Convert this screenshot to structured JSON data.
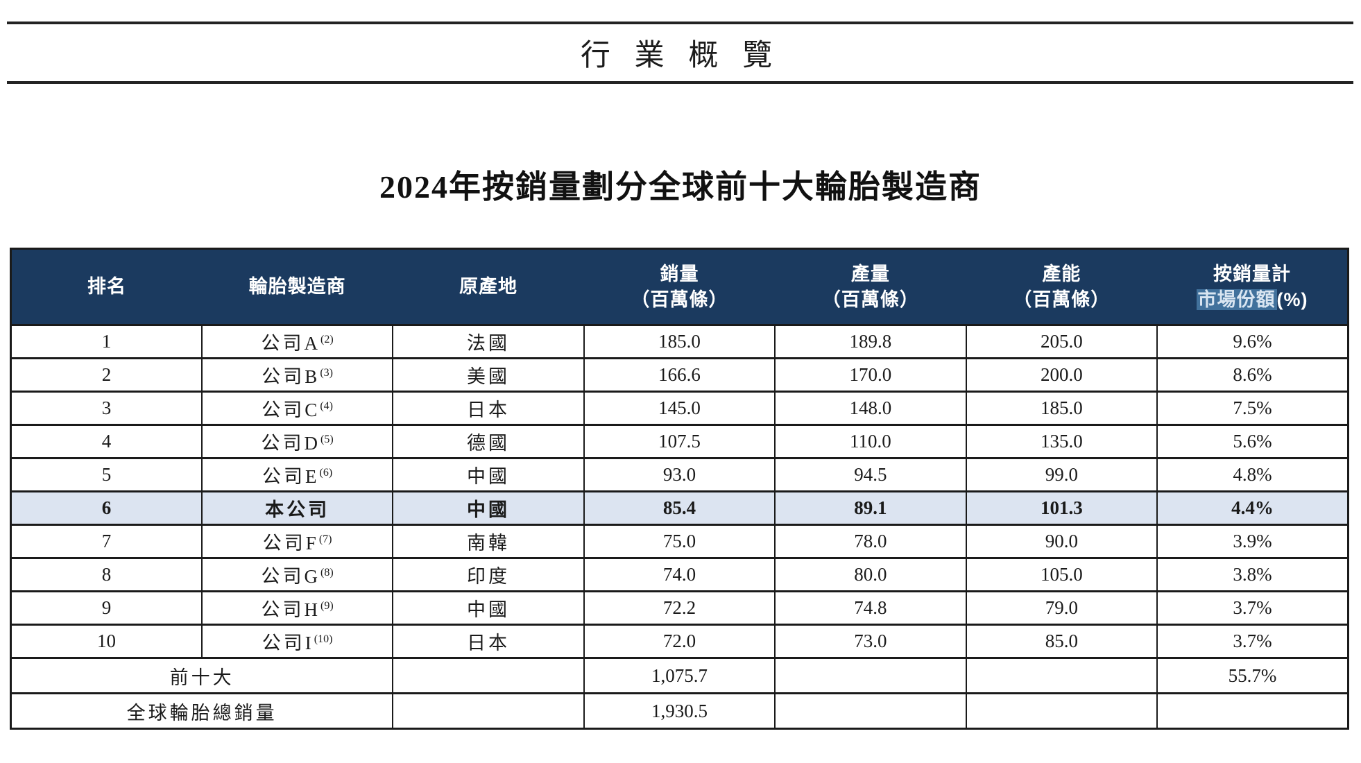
{
  "header": {
    "title": "行 業 概 覽"
  },
  "table": {
    "title": "2024年按銷量劃分全球前十大輪胎製造商",
    "columns": [
      {
        "id": "rank",
        "line1": "排名"
      },
      {
        "id": "manufacturer",
        "line1": "輪胎製造商"
      },
      {
        "id": "origin",
        "line1": "原產地"
      },
      {
        "id": "sales",
        "line1": "銷量",
        "line2": "（百萬條）"
      },
      {
        "id": "production",
        "line1": "產量",
        "line2": "（百萬條）"
      },
      {
        "id": "capacity",
        "line1": "產能",
        "line2": "（百萬條）"
      },
      {
        "id": "market-share",
        "line1": "按銷量計",
        "line2_highlight": "市場份額",
        "line2_suffix": "(%)"
      }
    ],
    "rows": [
      {
        "rank": "1",
        "company": "公司A",
        "note": "(2)",
        "origin": "法國",
        "sales": "185.0",
        "production": "189.8",
        "capacity": "205.0",
        "share": "9.6%",
        "highlight": false
      },
      {
        "rank": "2",
        "company": "公司B",
        "note": "(3)",
        "origin": "美國",
        "sales": "166.6",
        "production": "170.0",
        "capacity": "200.0",
        "share": "8.6%",
        "highlight": false
      },
      {
        "rank": "3",
        "company": "公司C",
        "note": "(4)",
        "origin": "日本",
        "sales": "145.0",
        "production": "148.0",
        "capacity": "185.0",
        "share": "7.5%",
        "highlight": false
      },
      {
        "rank": "4",
        "company": "公司D",
        "note": "(5)",
        "origin": "德國",
        "sales": "107.5",
        "production": "110.0",
        "capacity": "135.0",
        "share": "5.6%",
        "highlight": false
      },
      {
        "rank": "5",
        "company": "公司E",
        "note": "(6)",
        "origin": "中國",
        "sales": "93.0",
        "production": "94.5",
        "capacity": "99.0",
        "share": "4.8%",
        "highlight": false
      },
      {
        "rank": "6",
        "company": "本公司",
        "note": "",
        "origin": "中國",
        "sales": "85.4",
        "production": "89.1",
        "capacity": "101.3",
        "share": "4.4%",
        "highlight": true
      },
      {
        "rank": "7",
        "company": "公司F",
        "note": "(7)",
        "origin": "南韓",
        "sales": "75.0",
        "production": "78.0",
        "capacity": "90.0",
        "share": "3.9%",
        "highlight": false
      },
      {
        "rank": "8",
        "company": "公司G",
        "note": "(8)",
        "origin": "印度",
        "sales": "74.0",
        "production": "80.0",
        "capacity": "105.0",
        "share": "3.8%",
        "highlight": false
      },
      {
        "rank": "9",
        "company": "公司H",
        "note": "(9)",
        "origin": "中國",
        "sales": "72.2",
        "production": "74.8",
        "capacity": "79.0",
        "share": "3.7%",
        "highlight": false
      },
      {
        "rank": "10",
        "company": "公司I",
        "note": "(10)",
        "origin": "日本",
        "sales": "72.0",
        "production": "73.0",
        "capacity": "85.0",
        "share": "3.7%",
        "highlight": false
      }
    ],
    "footer_rows": [
      {
        "label": "前十大",
        "origin": "",
        "sales": "1,075.7",
        "production": "",
        "capacity": "",
        "share": "55.7%"
      },
      {
        "label": "全球輪胎總銷量",
        "origin": "",
        "sales": "1,930.5",
        "production": "",
        "capacity": "",
        "share": ""
      }
    ],
    "colors": {
      "header_bg": "#1b3a5f",
      "header_text": "#ffffff",
      "highlight_row_bg": "#dce4f1",
      "selection_bg": "#41719c",
      "selection_text": "#d9e5f1",
      "border": "#1a1a1a"
    }
  }
}
